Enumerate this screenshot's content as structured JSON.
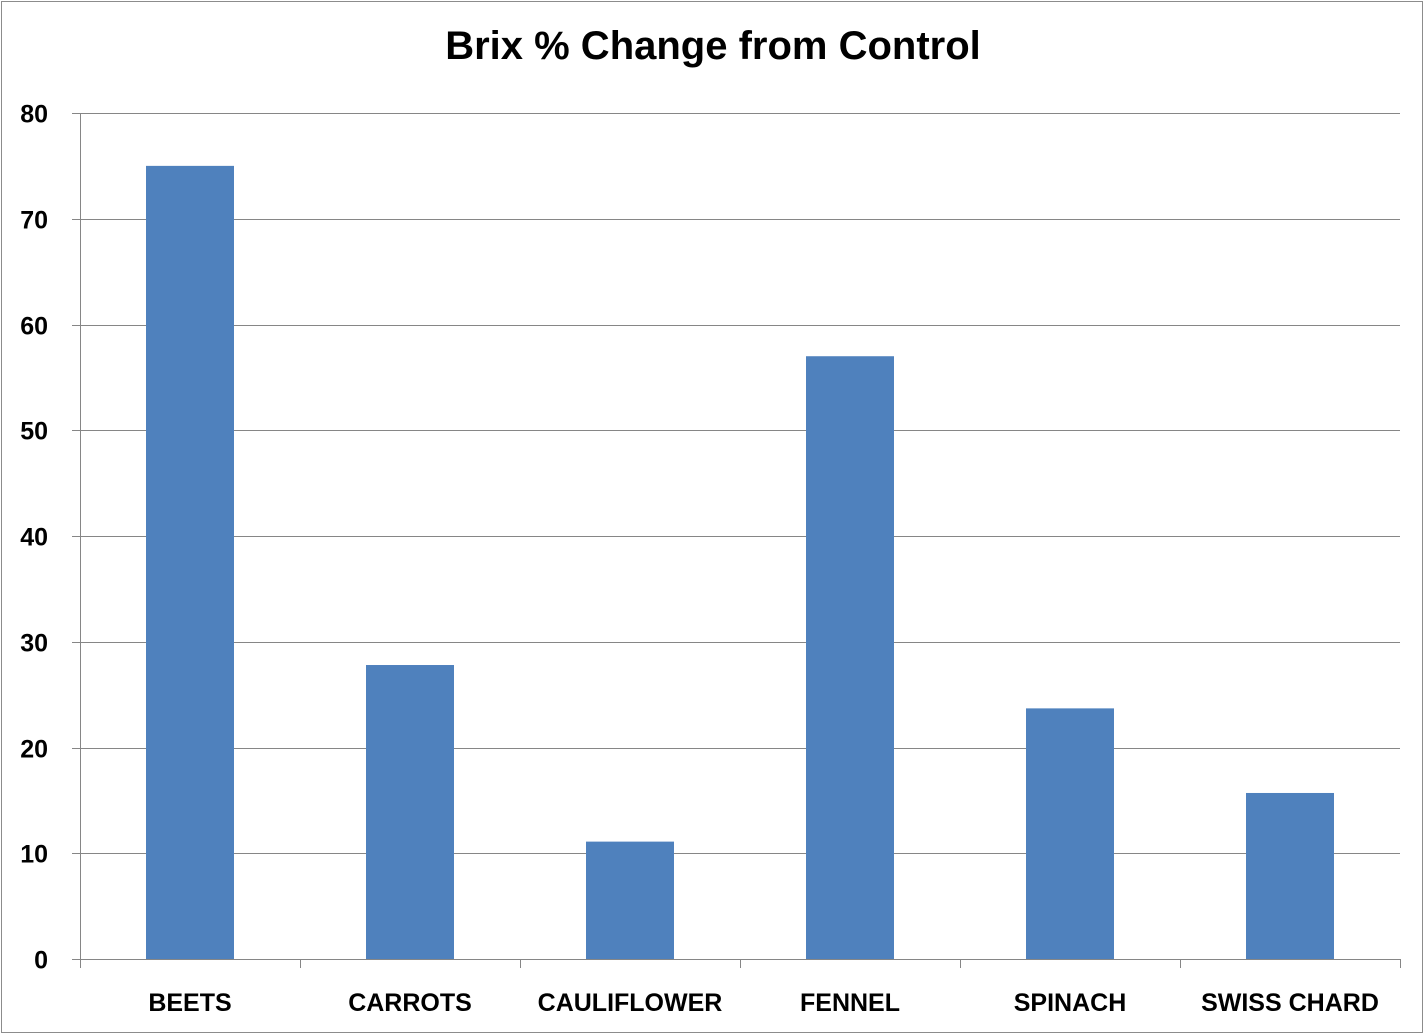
{
  "chart_data": {
    "type": "bar",
    "title": "Brix % Change from Control",
    "xlabel": "",
    "ylabel": "",
    "categories": [
      "BEETS",
      "CARROTS",
      "CAULIFLOWER",
      "FENNEL",
      "SPINACH",
      "SWISS CHARD"
    ],
    "values": [
      75,
      27.8,
      11.1,
      57,
      23.7,
      15.7
    ],
    "ylim": [
      0,
      80
    ],
    "yticks": [
      0,
      10,
      20,
      30,
      40,
      50,
      60,
      70,
      80
    ],
    "grid": true,
    "legend": "none",
    "bar_color": "#4f81bd",
    "grid_color": "#868686"
  }
}
